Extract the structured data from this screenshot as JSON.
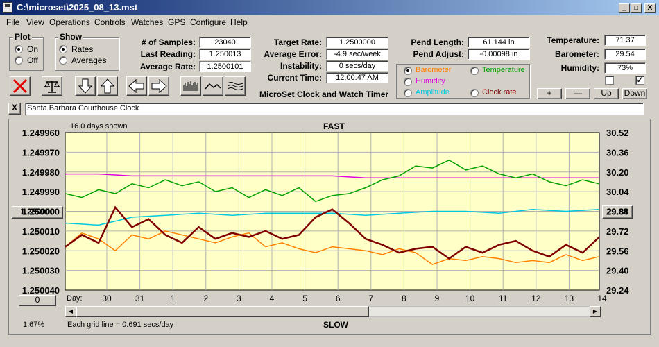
{
  "window": {
    "title": "C:\\microset\\2025_08_13.mst",
    "buttons": {
      "minimize": "_",
      "maximize": "□",
      "close": "X"
    }
  },
  "menu": [
    "File",
    "View",
    "Operations",
    "Controls",
    "Watches",
    "GPS",
    "Configure",
    "Help"
  ],
  "plot_group": {
    "title": "Plot",
    "options": [
      "On",
      "Off"
    ],
    "selected": "On"
  },
  "show_group": {
    "title": "Show",
    "options": [
      "Rates",
      "Averages"
    ],
    "selected": "Rates"
  },
  "stats_left": {
    "samples_label": "# of Samples:",
    "samples": "23040",
    "last_label": "Last Reading:",
    "last": "1.250013",
    "avg_label": "Average Rate:",
    "avg": "1.2500101"
  },
  "stats_mid": {
    "target_label": "Target Rate:",
    "target": "1.2500000",
    "avgerr_label": "Average Error:",
    "avgerr": "-4.9 sec/week",
    "instab_label": "Instability:",
    "instab": "0 secs/day",
    "time_label": "Current Time:",
    "time": "12:00:47 AM",
    "app_name": "MicroSet Clock and Watch Timer"
  },
  "pend": {
    "length_label": "Pend Length:",
    "length": "61.144 in",
    "adjust_label": "Pend Adjust:",
    "adjust": "-0.00098 in"
  },
  "aux_group": {
    "options": [
      {
        "label": "Barometer",
        "color": "#ff8000",
        "selected": true
      },
      {
        "label": "Temperature",
        "color": "#00a000",
        "selected": false
      },
      {
        "label": "Humidity",
        "color": "#e000e0",
        "selected": false
      },
      {
        "label": "Amplitude",
        "color": "#00c8e0",
        "selected": false
      },
      {
        "label": "Clock rate",
        "color": "#800000",
        "selected": false
      }
    ]
  },
  "env": {
    "temp_label": "Temperature:",
    "temp": "71.37",
    "baro_label": "Barometer:",
    "baro": "29.54",
    "hum_label": "Humidity:",
    "hum": "73%",
    "check1": false,
    "check2": true
  },
  "env_buttons": {
    "plus": "+",
    "minus": "—",
    "up": "Up",
    "down": "Down"
  },
  "toolbar_icons": [
    "stop-x-icon",
    "balance-scale-icon",
    "arrow-down-icon",
    "arrow-up-icon",
    "arrow-left-icon",
    "arrow-right-icon",
    "bar-histogram-icon",
    "wave-icon",
    "multi-wave-icon"
  ],
  "clock_name": {
    "close_label": "X",
    "value": "Santa Barbara Courthouse Clock"
  },
  "plot": {
    "days_shown": "16.0 days shown",
    "top_label": "FAST",
    "bottom_label": "SLOW",
    "grid_note": "Each grid line = 0.691 secs/day",
    "percent": "1.67%",
    "center_button": "1.250000",
    "zero_button": "0",
    "right_button": "29.88",
    "day_label": "Day:",
    "scroll_left": "◀",
    "scroll_right": "▶"
  },
  "chart_data": {
    "type": "line",
    "title": "",
    "xlabel": "Day",
    "x_ticks": [
      "30",
      "31",
      "1",
      "2",
      "3",
      "4",
      "5",
      "6",
      "7",
      "8",
      "9",
      "10",
      "11",
      "12",
      "13",
      "14"
    ],
    "y_left_ticks": [
      "1.249960",
      "1.249970",
      "1.249980",
      "1.249990",
      "1.250000",
      "1.250010",
      "1.250020",
      "1.250030",
      "1.250040"
    ],
    "y_right_ticks": [
      "30.52",
      "30.36",
      "30.20",
      "30.04",
      "29.88",
      "29.72",
      "29.56",
      "29.40",
      "29.24"
    ],
    "ylim_left": [
      1.24996,
      1.25004
    ],
    "ylim_right": [
      29.24,
      30.52
    ],
    "xlim_days": [
      0,
      16
    ],
    "left_axis_inverted": true,
    "grid": true,
    "background": "#ffffc8",
    "series": [
      {
        "name": "Humidity",
        "color": "#e000e0",
        "axis": "left",
        "x": [
          0,
          1,
          2,
          3,
          4,
          5,
          6,
          7,
          8,
          9,
          10,
          11,
          12,
          13,
          14,
          15,
          16
        ],
        "y": [
          1.249981,
          1.249981,
          1.249982,
          1.249982,
          1.249982,
          1.249982,
          1.249982,
          1.249982,
          1.249982,
          1.249983,
          1.249983,
          1.249983,
          1.249983,
          1.249983,
          1.249983,
          1.249983,
          1.249983
        ]
      },
      {
        "name": "Temperature",
        "color": "#00a000",
        "axis": "left",
        "x": [
          0,
          0.5,
          1,
          1.5,
          2,
          2.5,
          3,
          3.5,
          4,
          4.5,
          5,
          5.5,
          6,
          6.5,
          7,
          7.5,
          8,
          8.5,
          9,
          9.5,
          10,
          10.5,
          11,
          11.5,
          12,
          12.5,
          13,
          13.5,
          14,
          14.5,
          15,
          15.5,
          16
        ],
        "y": [
          1.249991,
          1.249993,
          1.249989,
          1.249991,
          1.249986,
          1.249988,
          1.249984,
          1.249987,
          1.249985,
          1.24999,
          1.249988,
          1.249993,
          1.249989,
          1.249992,
          1.249988,
          1.249995,
          1.249992,
          1.249991,
          1.249988,
          1.249984,
          1.249982,
          1.249977,
          1.249978,
          1.249974,
          1.249979,
          1.249977,
          1.249981,
          1.249983,
          1.249981,
          1.249985,
          1.249987,
          1.249984,
          1.249986
        ]
      },
      {
        "name": "Amplitude",
        "color": "#00c8e0",
        "axis": "left",
        "x": [
          0,
          1,
          2,
          3,
          4,
          5,
          6,
          7,
          8,
          9,
          10,
          11,
          12,
          13,
          14,
          15,
          16
        ],
        "y": [
          1.250006,
          1.250007,
          1.250003,
          1.250002,
          1.250001,
          1.250002,
          1.250001,
          1.250001,
          1.250001,
          1.250002,
          1.250001,
          1.25,
          1.25,
          1.250001,
          1.249999,
          1.25,
          1.249999
        ]
      },
      {
        "name": "Barometer",
        "color": "#ff8000",
        "axis": "left",
        "x": [
          0,
          0.5,
          1,
          1.5,
          2,
          2.5,
          3,
          3.5,
          4,
          4.5,
          5,
          5.5,
          6,
          6.5,
          7,
          7.5,
          8,
          8.5,
          9,
          9.5,
          10,
          10.5,
          11,
          11.5,
          12,
          12.5,
          13,
          13.5,
          14,
          14.5,
          15,
          15.5,
          16
        ],
        "y": [
          1.250018,
          1.250011,
          1.250014,
          1.25002,
          1.250012,
          1.250014,
          1.25001,
          1.250012,
          1.250014,
          1.250016,
          1.250013,
          1.250011,
          1.250018,
          1.250016,
          1.250019,
          1.250021,
          1.250018,
          1.250019,
          1.25002,
          1.250022,
          1.250019,
          1.250021,
          1.250027,
          1.250024,
          1.250025,
          1.250023,
          1.250024,
          1.250026,
          1.250025,
          1.250026,
          1.250022,
          1.250025,
          1.250023
        ]
      },
      {
        "name": "Clock rate",
        "color": "#800000",
        "axis": "left",
        "x": [
          0,
          0.5,
          1,
          1.5,
          2,
          2.5,
          3,
          3.5,
          4,
          4.5,
          5,
          5.5,
          6,
          6.5,
          7,
          7.5,
          8,
          8.5,
          9,
          9.5,
          10,
          10.5,
          11,
          11.5,
          12,
          12.5,
          13,
          13.5,
          14,
          14.5,
          15,
          15.5,
          16
        ],
        "y": [
          1.250018,
          1.250012,
          1.250016,
          1.249998,
          1.250008,
          1.250004,
          1.250012,
          1.250016,
          1.250008,
          1.250014,
          1.250011,
          1.250013,
          1.25001,
          1.250014,
          1.250012,
          1.250003,
          1.249999,
          1.250006,
          1.250014,
          1.250017,
          1.250021,
          1.250019,
          1.250018,
          1.250024,
          1.250018,
          1.250021,
          1.250017,
          1.250015,
          1.25002,
          1.250023,
          1.250017,
          1.250021,
          1.250013
        ]
      }
    ]
  }
}
